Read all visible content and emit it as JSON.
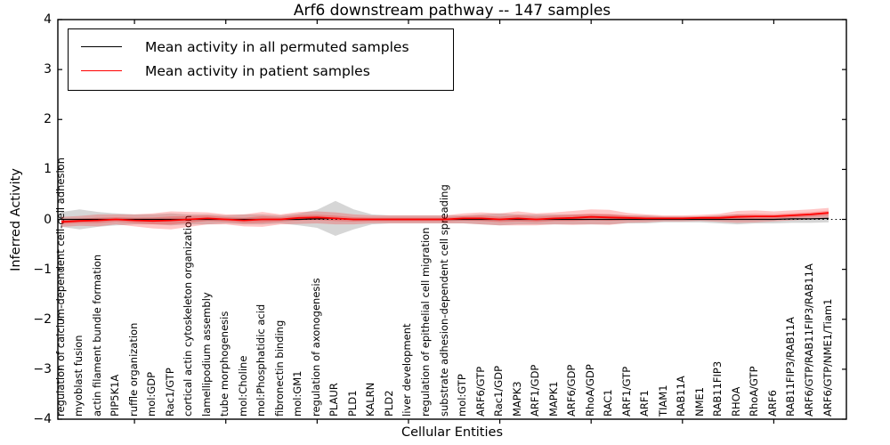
{
  "chart_data": {
    "type": "line",
    "title": "Arf6 downstream pathway -- 147 samples",
    "xlabel": "Cellular Entities",
    "ylabel": "Inferred Activity",
    "ylim": [
      -4,
      4
    ],
    "ytick_labels": [
      "4",
      "3",
      "2",
      "1",
      "0",
      "−1",
      "−2",
      "−3",
      "−4"
    ],
    "grid": false,
    "legend_position": "upper left",
    "zero_line_style": "dashed",
    "frame_color": "#000000",
    "categories": [
      "regulation of calcium-dependent cell-cell adhesion",
      "myoblast fusion",
      "actin filament bundle formation",
      "PIP5K1A",
      "ruffle organization",
      "mol:GDP",
      "Rac1/GTP",
      "cortical actin cytoskeleton organization",
      "lamellipodium assembly",
      "tube morphogenesis",
      "mol:Choline",
      "mol:Phosphatidic acid",
      "fibronectin binding",
      "mol:GM1",
      "regulation of axonogenesis",
      "PLAUR",
      "PLD1",
      "KALRN",
      "PLD2",
      "liver development",
      "regulation of epithelial cell migration",
      "substrate adhesion-dependent cell spreading",
      "mol:GTP",
      "ARF6/GTP",
      "Rac1/GDP",
      "MAPK3",
      "ARF1/GDP",
      "MAPK1",
      "ARF6/GDP",
      "RhoA/GDP",
      "RAC1",
      "ARF1/GTP",
      "ARF1",
      "TIAM1",
      "RAB11A",
      "NME1",
      "RAB11FIP3",
      "RHOA",
      "RhoA/GTP",
      "ARF6",
      "RAB11FIP3/RAB11A",
      "ARF6/GTP/RAB11FIP3/RAB11A",
      "ARF6/GTP/NME1/Tiam1"
    ],
    "series": [
      {
        "name": "Mean activity in all permuted samples",
        "color": "#000000",
        "band_color": "rgba(0,0,0,0.16)",
        "mean": [
          0,
          0,
          0,
          0,
          0,
          0,
          0,
          0,
          0,
          0,
          0,
          0,
          0,
          0,
          0.01,
          0.02,
          0,
          0,
          0,
          0,
          0,
          0,
          0,
          0,
          0,
          0,
          0,
          0,
          0,
          0,
          0,
          0,
          0,
          0,
          0,
          0,
          0,
          0,
          0,
          0,
          0.01,
          0.01,
          0.02
        ],
        "std": [
          0.15,
          0.2,
          0.15,
          0.12,
          0.1,
          0.1,
          0.12,
          0.1,
          0.1,
          0.08,
          0.1,
          0.1,
          0.08,
          0.12,
          0.18,
          0.35,
          0.2,
          0.1,
          0.08,
          0.08,
          0.08,
          0.08,
          0.08,
          0.1,
          0.12,
          0.1,
          0.1,
          0.1,
          0.1,
          0.1,
          0.1,
          0.08,
          0.08,
          0.06,
          0.06,
          0.06,
          0.08,
          0.1,
          0.08,
          0.08,
          0.08,
          0.08,
          0.08
        ]
      },
      {
        "name": "Mean activity in patient samples",
        "color": "#ff0000",
        "band_color": "rgba(255,0,0,0.22)",
        "mean": [
          -0.05,
          -0.03,
          -0.02,
          0,
          -0.02,
          -0.03,
          -0.02,
          0,
          0.02,
          0,
          -0.02,
          0,
          0,
          0.03,
          0.04,
          0.02,
          0,
          0,
          0,
          0,
          0,
          0,
          0.02,
          0.02,
          0,
          0.02,
          0,
          0.02,
          0.03,
          0.05,
          0.04,
          0.03,
          0.02,
          0.02,
          0.02,
          0.03,
          0.03,
          0.05,
          0.06,
          0.06,
          0.08,
          0.1,
          0.13
        ],
        "std": [
          0.1,
          0.1,
          0.12,
          0.1,
          0.12,
          0.15,
          0.18,
          0.15,
          0.12,
          0.1,
          0.12,
          0.15,
          0.1,
          0.12,
          0.12,
          0.12,
          0.1,
          0.08,
          0.08,
          0.08,
          0.08,
          0.08,
          0.1,
          0.12,
          0.12,
          0.14,
          0.12,
          0.12,
          0.14,
          0.15,
          0.15,
          0.1,
          0.08,
          0.06,
          0.06,
          0.06,
          0.08,
          0.12,
          0.12,
          0.1,
          0.1,
          0.1,
          0.1
        ]
      }
    ]
  }
}
